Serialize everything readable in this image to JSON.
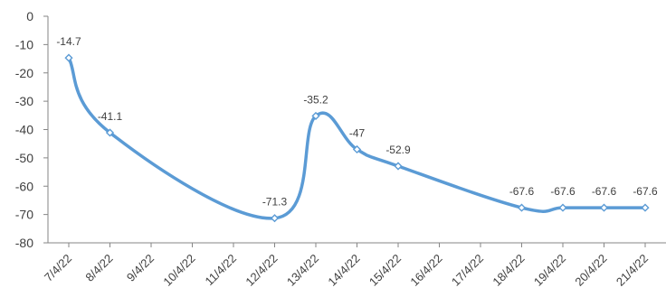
{
  "chart_data": {
    "type": "line",
    "title": "",
    "xlabel": "",
    "ylabel": "",
    "categories": [
      "7/4/22",
      "8/4/22",
      "9/4/22",
      "10/4/22",
      "11/4/22",
      "12/4/22",
      "13/4/22",
      "14/4/22",
      "15/4/22",
      "16/4/22",
      "17/4/22",
      "18/4/22",
      "19/4/22",
      "20/4/22",
      "21/4/22"
    ],
    "series": [
      {
        "values": [
          -14.7,
          -41.1,
          null,
          null,
          null,
          -71.3,
          -35.2,
          -47,
          -52.9,
          null,
          null,
          -67.6,
          -67.6,
          -67.6,
          -67.6
        ],
        "color": "#5b9bd5",
        "marker": "diamond",
        "smooth": true
      }
    ],
    "y_ticks": [
      0,
      -10,
      -20,
      -30,
      -40,
      -50,
      -60,
      -70,
      -80
    ],
    "ylim": [
      -80,
      0
    ],
    "grid": false,
    "legend": "none",
    "data_labels": [
      "-14.7",
      "-41.1",
      "-71.3",
      "-35.2",
      "-47",
      "-52.9",
      "-67.6",
      "-67.6",
      "-67.6",
      "-67.6"
    ]
  }
}
